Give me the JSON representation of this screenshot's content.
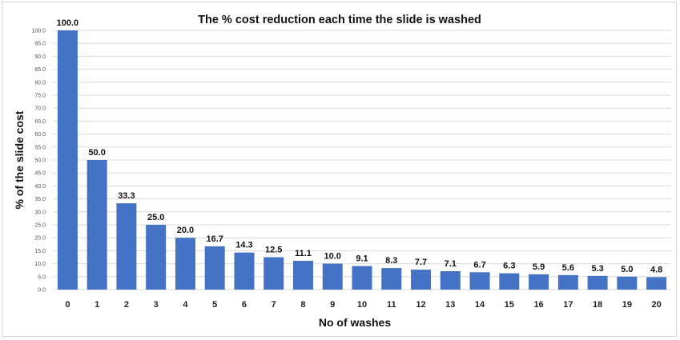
{
  "chart_data": {
    "type": "bar",
    "title": "The % cost reduction each time the slide is washed",
    "xlabel": "No of washes",
    "ylabel": "% of the slide cost",
    "categories": [
      "0",
      "1",
      "2",
      "3",
      "4",
      "5",
      "6",
      "7",
      "8",
      "9",
      "10",
      "11",
      "12",
      "13",
      "14",
      "15",
      "16",
      "17",
      "18",
      "19",
      "20"
    ],
    "values": [
      100.0,
      50.0,
      33.3,
      25.0,
      20.0,
      16.7,
      14.3,
      12.5,
      11.1,
      10.0,
      9.1,
      8.3,
      7.7,
      7.1,
      6.7,
      6.3,
      5.9,
      5.6,
      5.3,
      5.0,
      4.8
    ],
    "value_labels": [
      "100.0",
      "50.0",
      "33.3",
      "25.0",
      "20.0",
      "16.7",
      "14.3",
      "12.5",
      "11.1",
      "10.0",
      "9.1",
      "8.3",
      "7.7",
      "7.1",
      "6.7",
      "6.3",
      "5.9",
      "5.6",
      "5.3",
      "5.0",
      "4.8"
    ],
    "ylim": [
      0,
      100
    ],
    "ytick_step": 5,
    "ytick_labels": [
      "0.0",
      "5.0",
      "10.0",
      "15.0",
      "20.0",
      "25.0",
      "30.0",
      "35.0",
      "40.0",
      "45.0",
      "50.0",
      "55.0",
      "60.0",
      "65.0",
      "70.0",
      "75.0",
      "80.0",
      "85.0",
      "90.0",
      "95.0",
      "100.0"
    ],
    "grid": true,
    "bar_color": "#4472c4",
    "legend": "none"
  }
}
